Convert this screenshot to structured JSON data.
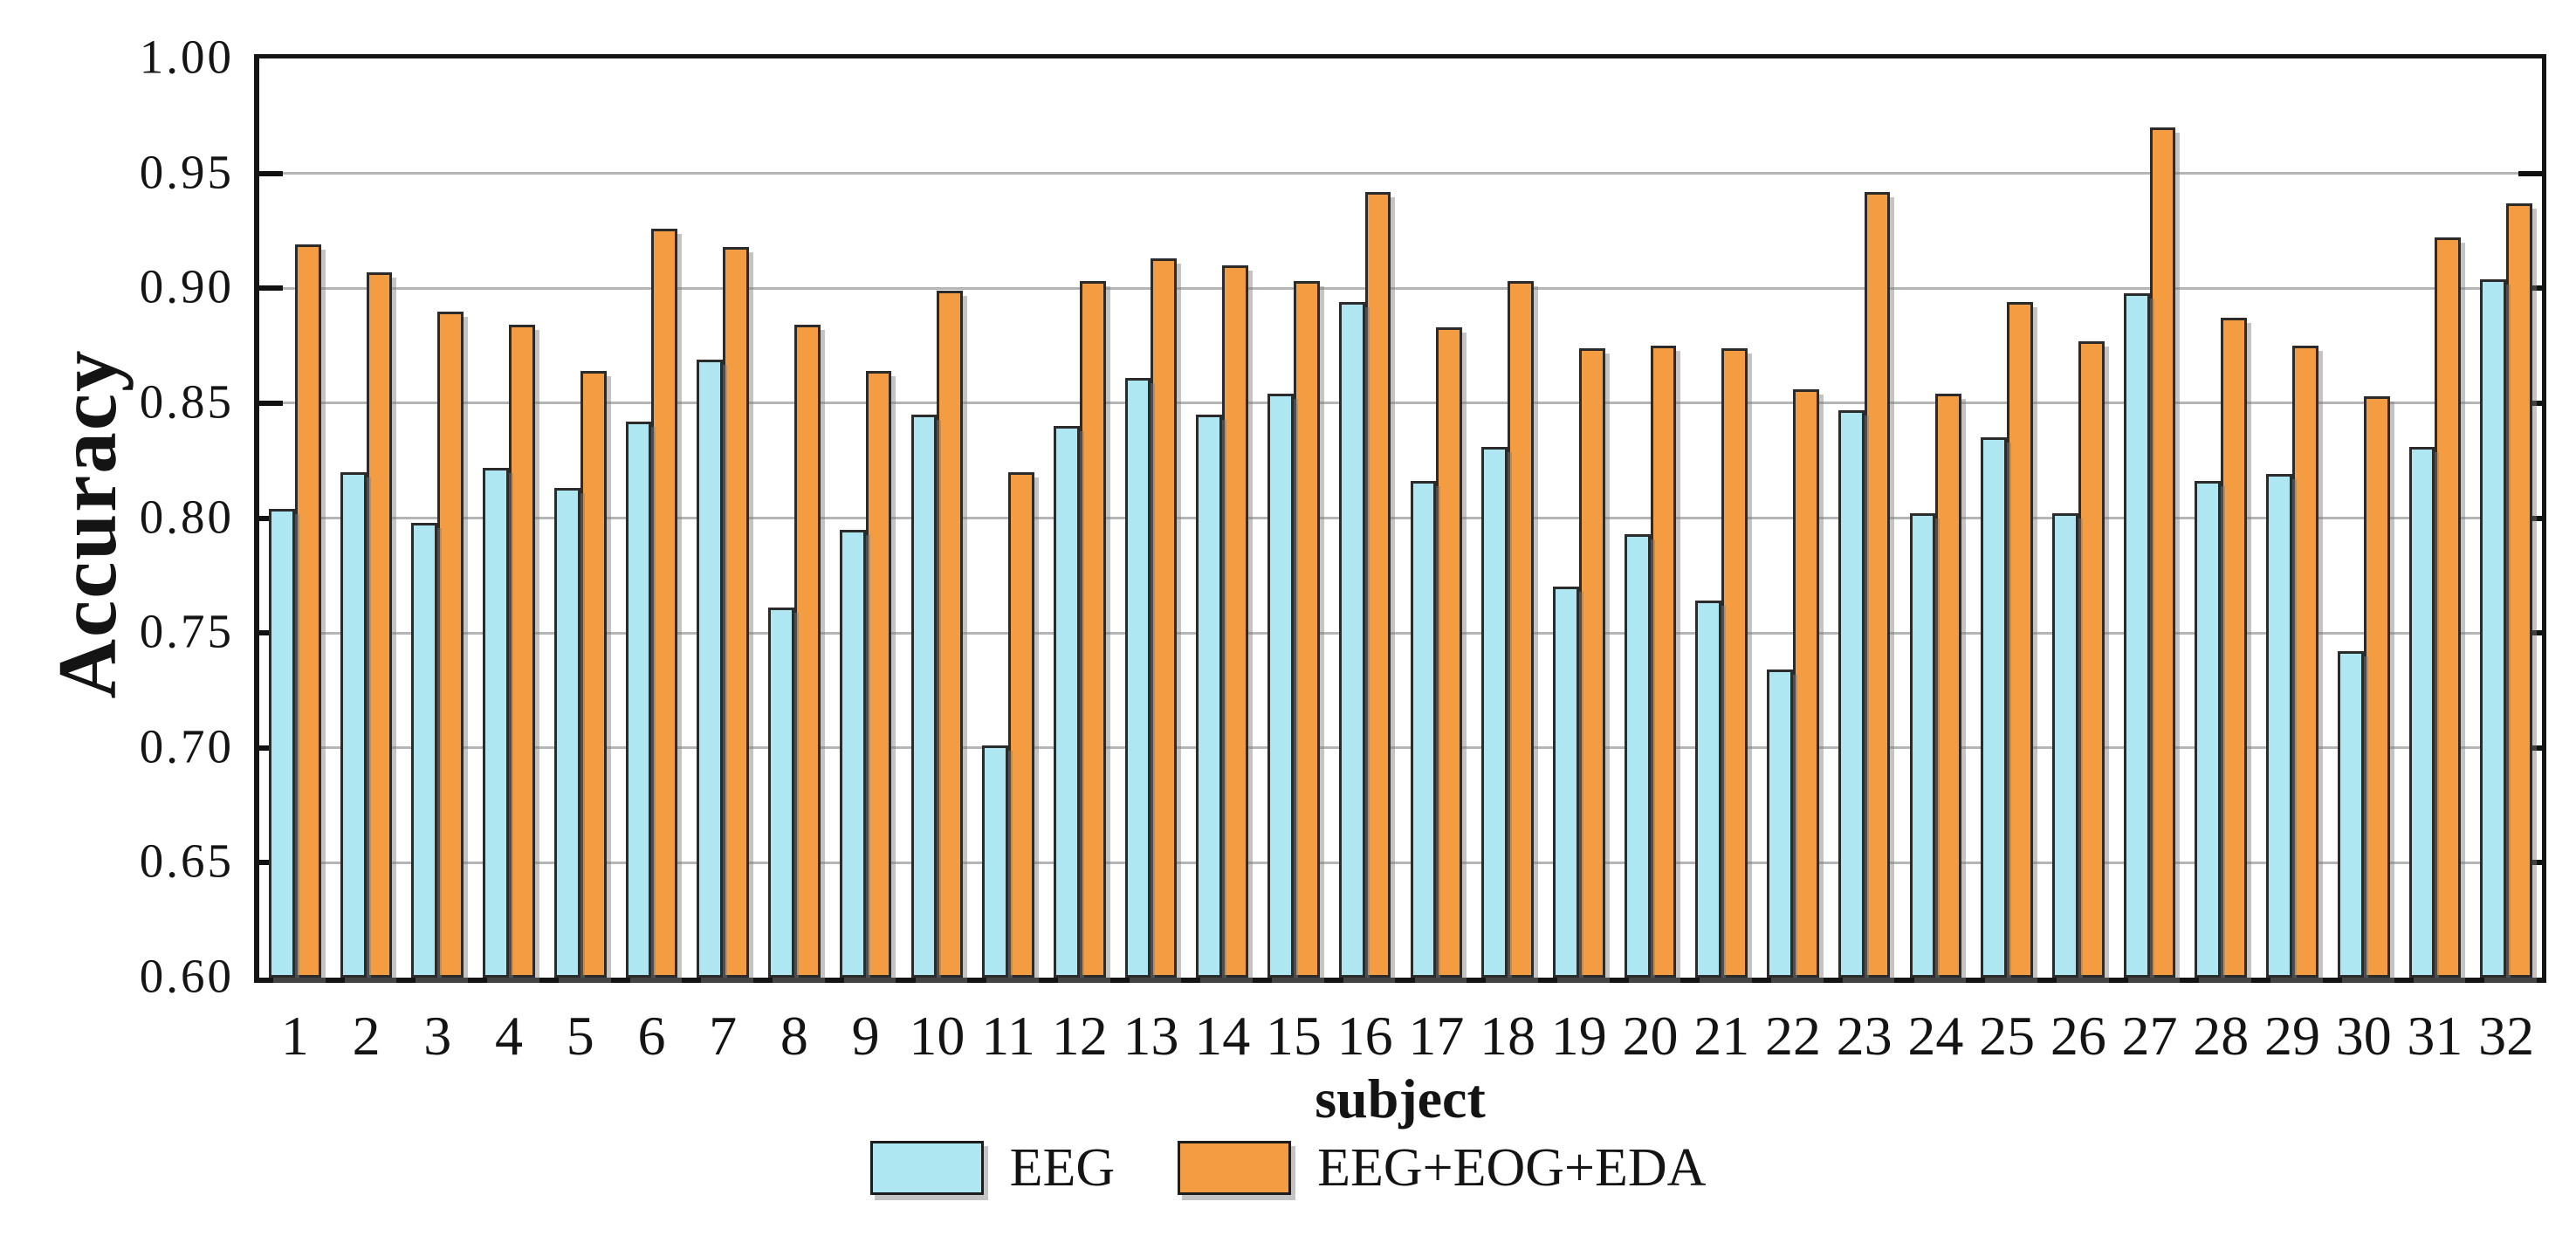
{
  "chart_data": {
    "type": "bar",
    "title": "",
    "xlabel": "subject",
    "ylabel": "Accuracy",
    "ylim": [
      0.6,
      1.0
    ],
    "ytick_step": 0.05,
    "ytick_labels": [
      "1.00",
      "0.95",
      "0.90",
      "0.85",
      "0.80",
      "0.75",
      "0.70",
      "0.65",
      "0.60"
    ],
    "grid": true,
    "legend_position": "bottom",
    "categories": [
      "1",
      "2",
      "3",
      "4",
      "5",
      "6",
      "7",
      "8",
      "9",
      "10",
      "11",
      "12",
      "13",
      "14",
      "15",
      "16",
      "17",
      "18",
      "19",
      "20",
      "21",
      "22",
      "23",
      "24",
      "25",
      "26",
      "27",
      "28",
      "29",
      "30",
      "31",
      "32"
    ],
    "series": [
      {
        "name": "EEG",
        "color": "#aee6f1",
        "edge_color": "#2b2b2b",
        "values": [
          0.804,
          0.82,
          0.798,
          0.822,
          0.813,
          0.842,
          0.869,
          0.761,
          0.795,
          0.845,
          0.701,
          0.84,
          0.861,
          0.845,
          0.854,
          0.894,
          0.816,
          0.831,
          0.77,
          0.793,
          0.764,
          0.734,
          0.847,
          0.802,
          0.835,
          0.802,
          0.898,
          0.816,
          0.819,
          0.742,
          0.831,
          0.904
        ]
      },
      {
        "name": "EEG+EOG+EDA",
        "color": "#f49c42",
        "edge_color": "#2b2b2b",
        "values": [
          0.919,
          0.907,
          0.89,
          0.884,
          0.864,
          0.926,
          0.918,
          0.884,
          0.864,
          0.899,
          0.82,
          0.903,
          0.913,
          0.91,
          0.903,
          0.942,
          0.883,
          0.903,
          0.874,
          0.875,
          0.874,
          0.856,
          0.942,
          0.854,
          0.894,
          0.877,
          0.97,
          0.887,
          0.875,
          0.853,
          0.922,
          0.937
        ]
      }
    ],
    "gridline_color": "#b5b5b5",
    "axis_color": "#141414"
  }
}
